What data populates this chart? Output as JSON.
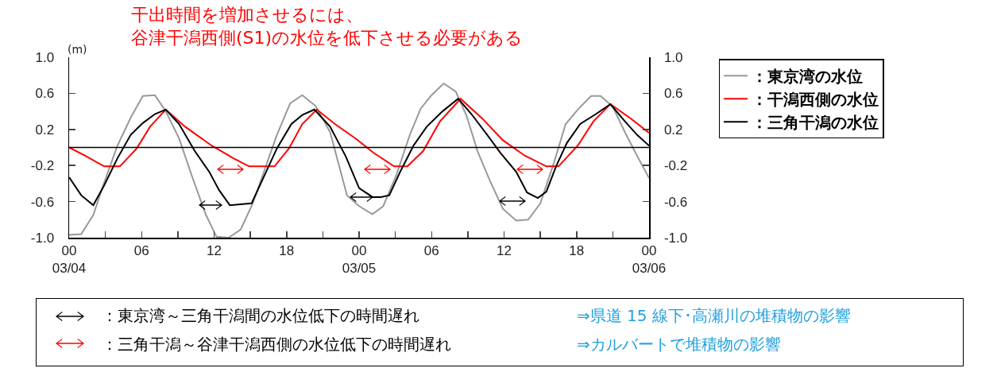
{
  "chart_data": {
    "type": "line",
    "title": "干出時間を増加させるには、",
    "subtitle": "谷津干潟西側(S1)の水位を低下させる必要がある",
    "ylabel": "(m)",
    "xlim": [
      "--03-04T00:00",
      "--03-06T00:00"
    ],
    "xticks": [
      {
        "value": "--03-04T00:00",
        "label": "00\n03/04"
      },
      {
        "value": "--03-04T03:00",
        "label": null
      },
      {
        "value": "--03-04T06:00",
        "label": "06"
      },
      {
        "value": "--03-04T09:00",
        "label": null
      },
      {
        "value": "--03-04T12:00",
        "label": "12"
      },
      {
        "value": "--03-04T15:00",
        "label": null
      },
      {
        "value": "--03-04T18:00",
        "label": "18"
      },
      {
        "value": "--03-04T21:00",
        "label": null
      },
      {
        "value": "--03-05T00:00",
        "label": "00\n03/05"
      },
      {
        "value": "--03-05T03:00",
        "label": null
      },
      {
        "value": "--03-05T06:00",
        "label": "06"
      },
      {
        "value": "--03-05T09:00",
        "label": null
      },
      {
        "value": "--03-05T12:00",
        "label": "12"
      },
      {
        "value": "--03-05T15:00",
        "label": null
      },
      {
        "value": "--03-05T18:00",
        "label": "18"
      },
      {
        "value": "--03-05T21:00",
        "label": null
      },
      {
        "value": "--03-06T00:00",
        "label": "00\n03/06"
      }
    ],
    "ylim": [
      -1,
      1
    ],
    "yticks": [
      {
        "value": -1,
        "label": "-1.0"
      },
      -0.6,
      -0.2,
      0.2,
      0.6,
      {
        "value": 1,
        "label": "1.0"
      }
    ],
    "y2lim": [
      -1,
      1
    ],
    "y2ticks": [
      {
        "value": -1,
        "label": "-1.0"
      },
      -0.6,
      -0.2,
      0.2,
      0.6,
      {
        "value": 1,
        "label": "1.0"
      }
    ],
    "grid": false,
    "legend": "right",
    "marker": "none",
    "line_style": "solid",
    "ref_lines": [
      {
        "axis": "y",
        "value": 0,
        "color": "#000000"
      }
    ],
    "series": [
      {
        "name": "：東京湾の水位",
        "color": "#999999",
        "x": [
          "--03-04T00:00",
          "--03-04T01:00",
          "--03-04T02:00",
          "--03-04T02:54",
          "--03-04T04:00",
          "--03-04T05:06",
          "--03-04T06:06",
          "--03-04T07:06",
          "--03-04T08:00",
          "--03-04T09:06",
          "--03-04T10:12",
          "--03-04T11:18",
          "--03-04T12:12",
          "--03-04T13:12",
          "--03-04T14:12",
          "--03-04T15:12",
          "--03-04T16:12",
          "--03-04T17:12",
          "--03-04T18:18",
          "--03-04T19:18",
          "--03-04T20:24",
          "--03-04T21:36",
          "--03-04T23:00",
          "--03-05T00:00",
          "--03-05T01:06",
          "--03-05T02:00",
          "--03-05T03:06",
          "--03-05T04:12",
          "--03-05T05:06",
          "--03-05T06:00",
          "--03-05T07:00",
          "--03-05T08:00",
          "--03-05T08:54",
          "--03-05T09:48",
          "--03-05T10:48",
          "--03-05T11:54",
          "--03-05T13:00",
          "--03-05T14:00",
          "--03-05T15:00",
          "--03-05T16:06",
          "--03-05T17:06",
          "--03-05T18:06",
          "--03-05T19:12",
          "--03-05T20:00",
          "--03-05T21:00",
          "--03-05T22:00",
          "--03-05T23:00",
          "--03-06T00:00"
        ],
        "values": [
          -0.97,
          -0.96,
          -0.75,
          -0.39,
          0.02,
          0.33,
          0.57,
          0.58,
          0.4,
          0.1,
          -0.33,
          -0.74,
          -0.99,
          -1.0,
          -0.91,
          -0.62,
          -0.24,
          0.14,
          0.49,
          0.58,
          0.46,
          0.17,
          -0.53,
          -0.65,
          -0.74,
          -0.65,
          -0.3,
          0.14,
          0.43,
          0.58,
          0.71,
          0.62,
          0.35,
          -0.04,
          -0.36,
          -0.68,
          -0.81,
          -0.8,
          -0.62,
          -0.18,
          0.26,
          0.42,
          0.57,
          0.57,
          0.45,
          0.17,
          -0.09,
          -0.34
        ]
      },
      {
        "name": "：干潟西側の水位",
        "color": "#ff0000",
        "x": [
          "--03-04T00:00",
          "--03-04T01:18",
          "--03-04T02:54",
          "--03-04T04:12",
          "--03-04T05:36",
          "--03-04T06:42",
          "--03-04T08:00",
          "--03-04T09:36",
          "--03-04T11:48",
          "--03-04T13:36",
          "--03-04T14:54",
          "--03-04T17:00",
          "--03-04T18:12",
          "--03-04T19:18",
          "--03-04T20:30",
          "--03-04T22:00",
          "--03-04T23:48",
          "--03-05T01:12",
          "--03-05T02:54",
          "--03-05T04:00",
          "--03-05T05:18",
          "--03-05T06:42",
          "--03-05T08:24",
          "--03-05T10:12",
          "--03-05T11:54",
          "--03-05T13:42",
          "--03-05T15:30",
          "--03-05T16:30",
          "--03-05T18:06",
          "--03-05T19:24",
          "--03-05T20:48",
          "--03-05T22:30",
          "--03-06T00:00"
        ],
        "values": [
          0,
          -0.09,
          -0.21,
          -0.21,
          -0.01,
          0.23,
          0.42,
          0.23,
          0.02,
          -0.12,
          -0.21,
          -0.21,
          -0.01,
          0.26,
          0.42,
          0.26,
          0.09,
          -0.06,
          -0.21,
          -0.21,
          -0.04,
          0.29,
          0.54,
          0.32,
          0.08,
          -0.09,
          -0.21,
          -0.21,
          0.02,
          0.29,
          0.48,
          0.32,
          0.16
        ]
      },
      {
        "name": "：三角干潟の水位",
        "color": "#000000",
        "x": [
          "--03-04T00:00",
          "--03-04T01:00",
          "--03-04T02:00",
          "--03-04T02:54",
          "--03-04T04:00",
          "--03-04T05:06",
          "--03-04T06:06",
          "--03-04T07:06",
          "--03-04T08:00",
          "--03-04T09:06",
          "--03-04T10:24",
          "--03-04T11:36",
          "--03-04T12:24",
          "--03-04T13:18",
          "--03-04T15:06",
          "--03-04T16:12",
          "--03-04T17:12",
          "--03-04T18:24",
          "--03-04T19:18",
          "--03-04T20:18",
          "--03-04T21:36",
          "--03-04T22:54",
          "--03-05T00:00",
          "--03-05T01:06",
          "--03-05T01:48",
          "--03-05T02:30",
          "--03-05T03:24",
          "--03-05T04:30",
          "--03-05T05:36",
          "--03-05T06:54",
          "--03-05T08:12",
          "--03-05T09:18",
          "--03-05T10:36",
          "--03-05T11:42",
          "--03-05T13:00",
          "--03-05T13:54",
          "--03-05T14:48",
          "--03-05T15:30",
          "--03-05T16:18",
          "--03-05T17:12",
          "--03-05T18:18",
          "--03-05T19:36",
          "--03-05T20:48",
          "--03-05T22:00",
          "--03-05T23:00",
          "--03-06T00:00"
        ],
        "values": [
          -0.33,
          -0.53,
          -0.64,
          -0.42,
          -0.12,
          0.14,
          0.27,
          0.37,
          0.42,
          0.26,
          -0.04,
          -0.27,
          -0.47,
          -0.64,
          -0.62,
          -0.3,
          -0.01,
          0.26,
          0.36,
          0.42,
          0.23,
          -0.1,
          -0.45,
          -0.55,
          -0.55,
          -0.53,
          -0.27,
          0.02,
          0.23,
          0.4,
          0.54,
          0.37,
          0.14,
          -0.06,
          -0.27,
          -0.5,
          -0.56,
          -0.49,
          -0.21,
          0.05,
          0.26,
          0.37,
          0.48,
          0.29,
          0.14,
          0.02
        ]
      }
    ],
    "annotations": [
      "：東京湾～三角干潟間の水位低下の時間遅れ",
      "⇒県道 15 線下･高瀬川の堆積物の影響",
      "：三角干潟～谷津干潟西側の水位低下の時間遅れ",
      "⇒カルバートで堆積物の影響"
    ]
  }
}
